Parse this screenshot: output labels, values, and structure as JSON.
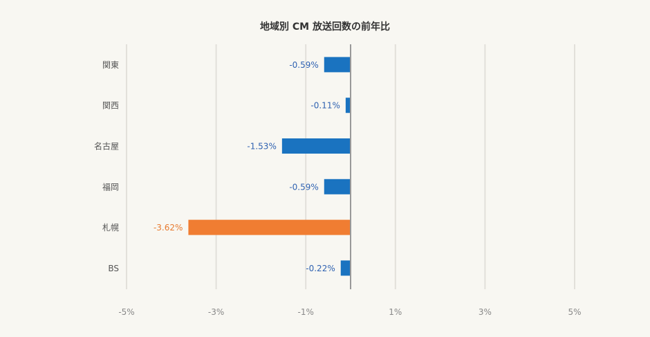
{
  "chart_data": {
    "type": "bar",
    "orientation": "horizontal",
    "title": "地域別 CM 放送回数の前年比",
    "xlabel": "",
    "ylabel": "",
    "categories": [
      "関東",
      "関西",
      "名古屋",
      "福岡",
      "札幌",
      "BS"
    ],
    "values": [
      -0.59,
      -0.11,
      -1.53,
      -0.59,
      -3.62,
      -0.22
    ],
    "data_labels": [
      "-0.59%",
      "-0.11%",
      "-1.53%",
      "-0.59%",
      "-3.62%",
      "-0.22%"
    ],
    "highlight_index": 4,
    "xlim": [
      -5,
      5
    ],
    "x_ticks": [
      -5,
      -3,
      -1,
      1,
      3,
      5
    ],
    "x_tick_labels": [
      "-5%",
      "-3%",
      "-1%",
      "1%",
      "3%",
      "5%"
    ],
    "grid": true,
    "legend": "none",
    "colors": {
      "bar": "#1a73c0",
      "highlight": "#f07d32",
      "label": "#2f62b1",
      "highlight_label": "#e77a2f",
      "grid": "#e2e0da",
      "zero_line": "#999999",
      "axis_text": "#888888",
      "category_text": "#555555"
    }
  }
}
